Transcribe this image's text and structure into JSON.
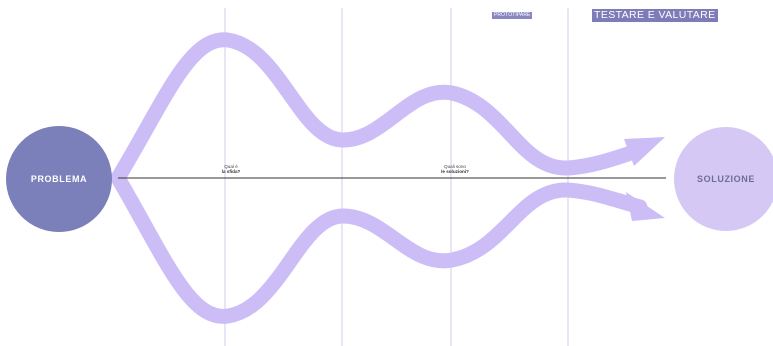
{
  "phases": {
    "small_tag": "PROTOTIPARE",
    "large_tag": "TESTARE E VALUTARE"
  },
  "questions": {
    "first": {
      "line1": "Qual è",
      "line2": "la sfida?"
    },
    "second": {
      "line1": "Quali sono",
      "line2": "le soluzioni?"
    }
  },
  "nodes": {
    "problem": "PROBLEMA",
    "solution": "SOLUZIONE"
  },
  "colors": {
    "problem_fill": "#7b7fba",
    "solution_fill": "#d5c8f5",
    "flow_stroke": "#cdbdf7",
    "divider": "#d7d4f0",
    "axis": "#333333",
    "tag_small_bg": "#8a86c4",
    "tag_large_bg": "#7d7bb8"
  }
}
